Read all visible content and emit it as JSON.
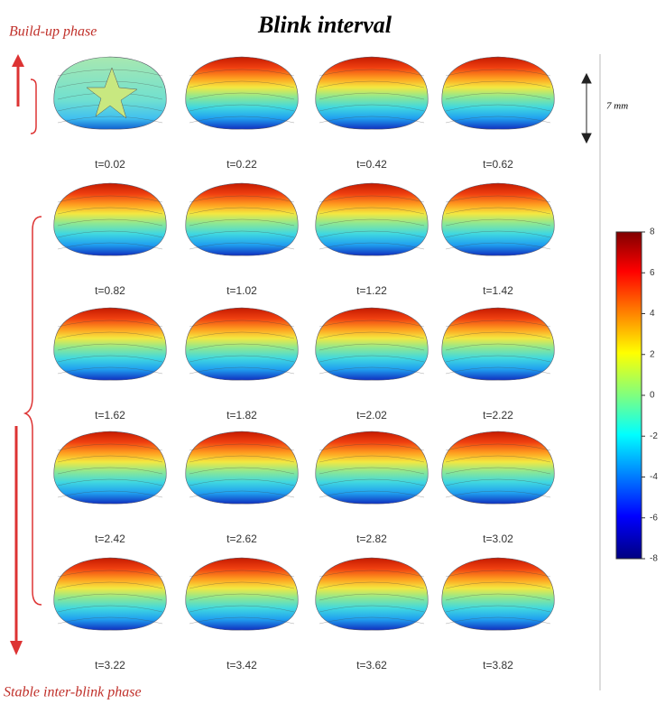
{
  "header": {
    "title": "Blink interval",
    "top_label": "Build-up phase",
    "bottom_label": "Stable inter-blink phase"
  },
  "panels": [
    "t=0.02",
    "t=0.22",
    "t=0.42",
    "t=0.62",
    "t=0.82",
    "t=1.02",
    "t=1.22",
    "t=1.42",
    "t=1.62",
    "t=1.82",
    "t=2.02",
    "t=2.22",
    "t=2.42",
    "t=2.62",
    "t=2.82",
    "t=3.02",
    "t=3.22",
    "t=3.42",
    "t=3.62",
    "t=3.82"
  ],
  "scale_label": "7 mm",
  "colorbar": {
    "ylim": [
      -8,
      8
    ],
    "yticks": [
      8,
      6,
      4,
      2,
      0,
      -2,
      -4,
      -6,
      -8
    ]
  }
}
